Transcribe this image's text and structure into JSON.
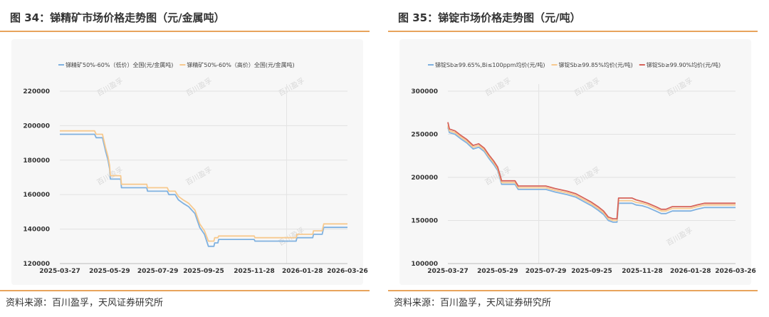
{
  "left": {
    "title": "图 34：锑精矿市场价格走势图（元/金属吨）",
    "source": "资料来源：百川盈孚，天风证券研究所"
  },
  "right": {
    "title": "图 35：锑锭市场价格走势图（元/吨）",
    "source": "资料来源：百川盈孚，天风证券研究所"
  },
  "watermark_text": "百川盈孚",
  "chart_data": [
    {
      "type": "line",
      "title": "",
      "xlabel": "",
      "ylabel": "",
      "x_tick_labels": [
        "2025-03-27",
        "2025-05-29",
        "2025-07-29",
        "2025-09-25",
        "2025-11-28",
        "2026-01-28",
        "2026-03-26"
      ],
      "y_ticks": [
        120000,
        140000,
        160000,
        180000,
        200000,
        220000
      ],
      "ylim": [
        120000,
        220000
      ],
      "legend_position": "top",
      "grid": "horizontal",
      "series": [
        {
          "name": "锑精矿50%-60%（低价）全国(元/金属吨)",
          "color": "#7fb1e0",
          "points": [
            [
              "2025-03-27",
              195000
            ],
            [
              "2025-05-10",
              195000
            ],
            [
              "2025-05-12",
              193000
            ],
            [
              "2025-05-20",
              193000
            ],
            [
              "2025-05-24",
              185000
            ],
            [
              "2025-05-27",
              180000
            ],
            [
              "2025-05-29",
              175000
            ],
            [
              "2025-05-30",
              169000
            ],
            [
              "2025-06-12",
              169000
            ],
            [
              "2025-06-13",
              164000
            ],
            [
              "2025-07-15",
              164000
            ],
            [
              "2025-07-16",
              162000
            ],
            [
              "2025-08-10",
              162000
            ],
            [
              "2025-08-12",
              160000
            ],
            [
              "2025-08-20",
              160000
            ],
            [
              "2025-08-24",
              157000
            ],
            [
              "2025-08-30",
              155000
            ],
            [
              "2025-09-06",
              153000
            ],
            [
              "2025-09-14",
              149000
            ],
            [
              "2025-09-20",
              141000
            ],
            [
              "2025-09-26",
              137000
            ],
            [
              "2025-10-01",
              130000
            ],
            [
              "2025-10-08",
              130000
            ],
            [
              "2025-10-09",
              132000
            ],
            [
              "2025-10-13",
              132000
            ],
            [
              "2025-10-14",
              134000
            ],
            [
              "2025-11-28",
              134000
            ],
            [
              "2025-11-29",
              133000
            ],
            [
              "2026-01-20",
              133000
            ],
            [
              "2026-01-21",
              135000
            ],
            [
              "2026-02-10",
              135000
            ],
            [
              "2026-02-11",
              137000
            ],
            [
              "2026-02-22",
              137000
            ],
            [
              "2026-02-24",
              141000
            ],
            [
              "2026-03-26",
              141000
            ]
          ]
        },
        {
          "name": "锑精矿50%-60%（高价）全国(元/金属吨)",
          "color": "#f7c98e",
          "points": [
            [
              "2025-03-27",
              197000
            ],
            [
              "2025-05-10",
              197000
            ],
            [
              "2025-05-12",
              195000
            ],
            [
              "2025-05-20",
              195000
            ],
            [
              "2025-05-24",
              187000
            ],
            [
              "2025-05-27",
              182000
            ],
            [
              "2025-05-29",
              177000
            ],
            [
              "2025-05-30",
              171000
            ],
            [
              "2025-06-12",
              171000
            ],
            [
              "2025-06-13",
              166000
            ],
            [
              "2025-07-15",
              166000
            ],
            [
              "2025-07-16",
              164000
            ],
            [
              "2025-08-10",
              164000
            ],
            [
              "2025-08-12",
              162000
            ],
            [
              "2025-08-20",
              162000
            ],
            [
              "2025-08-24",
              159000
            ],
            [
              "2025-08-30",
              157000
            ],
            [
              "2025-09-06",
              155000
            ],
            [
              "2025-09-14",
              151000
            ],
            [
              "2025-09-20",
              143000
            ],
            [
              "2025-09-26",
              139000
            ],
            [
              "2025-10-01",
              133000
            ],
            [
              "2025-10-08",
              133000
            ],
            [
              "2025-10-09",
              135000
            ],
            [
              "2025-10-13",
              135000
            ],
            [
              "2025-10-14",
              136000
            ],
            [
              "2025-11-28",
              136000
            ],
            [
              "2025-11-29",
              135000
            ],
            [
              "2026-01-20",
              135000
            ],
            [
              "2026-01-21",
              137000
            ],
            [
              "2026-02-10",
              137000
            ],
            [
              "2026-02-11",
              139000
            ],
            [
              "2026-02-22",
              139000
            ],
            [
              "2026-02-24",
              143000
            ],
            [
              "2026-03-26",
              143000
            ]
          ]
        }
      ]
    },
    {
      "type": "line",
      "title": "",
      "xlabel": "",
      "ylabel": "",
      "x_tick_labels": [
        "2025-03-27",
        "2025-05-29",
        "2025-07-29",
        "2025-09-25",
        "2025-11-28",
        "2026-01-28",
        "2026-03-26"
      ],
      "y_ticks": [
        100000,
        150000,
        200000,
        250000,
        300000
      ],
      "ylim": [
        100000,
        300000
      ],
      "legend_position": "top",
      "grid": "horizontal",
      "series": [
        {
          "name": "锑锭Sb≥99.65%,Bi≤100ppm均价(元/吨)",
          "color": "#7fb1e0",
          "points": [
            [
              "2025-03-27",
              258000
            ],
            [
              "2025-03-29",
              252000
            ],
            [
              "2025-04-05",
              250000
            ],
            [
              "2025-04-12",
              245000
            ],
            [
              "2025-04-20",
              240000
            ],
            [
              "2025-04-28",
              233000
            ],
            [
              "2025-05-05",
              235000
            ],
            [
              "2025-05-12",
              230000
            ],
            [
              "2025-05-18",
              222000
            ],
            [
              "2025-05-24",
              215000
            ],
            [
              "2025-05-29",
              208000
            ],
            [
              "2025-06-03",
              192000
            ],
            [
              "2025-06-20",
              192000
            ],
            [
              "2025-06-24",
              186000
            ],
            [
              "2025-07-29",
              186000
            ],
            [
              "2025-08-10",
              183000
            ],
            [
              "2025-08-25",
              180000
            ],
            [
              "2025-09-05",
              177000
            ],
            [
              "2025-09-15",
              172000
            ],
            [
              "2025-09-25",
              167000
            ],
            [
              "2025-10-03",
              162000
            ],
            [
              "2025-10-10",
              157000
            ],
            [
              "2025-10-16",
              150000
            ],
            [
              "2025-10-22",
              148000
            ],
            [
              "2025-10-27",
              148000
            ],
            [
              "2025-10-29",
              170000
            ],
            [
              "2025-11-15",
              170000
            ],
            [
              "2025-11-20",
              168000
            ],
            [
              "2025-11-28",
              167000
            ],
            [
              "2025-12-05",
              165000
            ],
            [
              "2025-12-15",
              161000
            ],
            [
              "2025-12-22",
              158000
            ],
            [
              "2025-12-28",
              158000
            ],
            [
              "2026-01-05",
              161000
            ],
            [
              "2026-01-28",
              161000
            ],
            [
              "2026-02-05",
              163000
            ],
            [
              "2026-02-15",
              165000
            ],
            [
              "2026-03-26",
              165000
            ]
          ]
        },
        {
          "name": "锑锭Sb≥99.85%均价(元/吨)",
          "color": "#f7c98e",
          "points": [
            [
              "2025-03-27",
              260000
            ],
            [
              "2025-03-29",
              254000
            ],
            [
              "2025-04-05",
              252000
            ],
            [
              "2025-04-12",
              247000
            ],
            [
              "2025-04-20",
              242000
            ],
            [
              "2025-04-28",
              235000
            ],
            [
              "2025-05-05",
              237000
            ],
            [
              "2025-05-12",
              232000
            ],
            [
              "2025-05-18",
              224000
            ],
            [
              "2025-05-24",
              217000
            ],
            [
              "2025-05-29",
              210000
            ],
            [
              "2025-06-03",
              194000
            ],
            [
              "2025-06-20",
              194000
            ],
            [
              "2025-06-24",
              188000
            ],
            [
              "2025-07-29",
              188000
            ],
            [
              "2025-08-10",
              185000
            ],
            [
              "2025-08-25",
              182000
            ],
            [
              "2025-09-05",
              179000
            ],
            [
              "2025-09-15",
              174000
            ],
            [
              "2025-09-25",
              169000
            ],
            [
              "2025-10-03",
              164000
            ],
            [
              "2025-10-10",
              159000
            ],
            [
              "2025-10-16",
              152000
            ],
            [
              "2025-10-22",
              150000
            ],
            [
              "2025-10-27",
              150000
            ],
            [
              "2025-10-29",
              173000
            ],
            [
              "2025-11-15",
              173000
            ],
            [
              "2025-11-20",
              171000
            ],
            [
              "2025-11-28",
              170000
            ],
            [
              "2025-12-05",
              168000
            ],
            [
              "2025-12-15",
              164000
            ],
            [
              "2025-12-22",
              161000
            ],
            [
              "2025-12-28",
              161000
            ],
            [
              "2026-01-05",
              164000
            ],
            [
              "2026-01-28",
              164000
            ],
            [
              "2026-02-05",
              166000
            ],
            [
              "2026-02-15",
              168000
            ],
            [
              "2026-03-26",
              168000
            ]
          ]
        },
        {
          "name": "锑锭Sb≥99.90%均价(元/吨)",
          "color": "#d6635a",
          "points": [
            [
              "2025-03-27",
              264000
            ],
            [
              "2025-03-29",
              256000
            ],
            [
              "2025-04-05",
              254000
            ],
            [
              "2025-04-12",
              249000
            ],
            [
              "2025-04-20",
              244000
            ],
            [
              "2025-04-28",
              237000
            ],
            [
              "2025-05-05",
              239000
            ],
            [
              "2025-05-12",
              234000
            ],
            [
              "2025-05-18",
              226000
            ],
            [
              "2025-05-24",
              219000
            ],
            [
              "2025-05-29",
              212000
            ],
            [
              "2025-06-03",
              196000
            ],
            [
              "2025-06-20",
              196000
            ],
            [
              "2025-06-24",
              190000
            ],
            [
              "2025-07-29",
              190000
            ],
            [
              "2025-08-10",
              187000
            ],
            [
              "2025-08-25",
              184000
            ],
            [
              "2025-09-05",
              181000
            ],
            [
              "2025-09-15",
              176000
            ],
            [
              "2025-09-25",
              171000
            ],
            [
              "2025-10-03",
              166000
            ],
            [
              "2025-10-10",
              161000
            ],
            [
              "2025-10-16",
              154000
            ],
            [
              "2025-10-22",
              152000
            ],
            [
              "2025-10-27",
              152000
            ],
            [
              "2025-10-29",
              176000
            ],
            [
              "2025-11-15",
              176000
            ],
            [
              "2025-11-20",
              174000
            ],
            [
              "2025-11-28",
              172000
            ],
            [
              "2025-12-05",
              170000
            ],
            [
              "2025-12-15",
              166000
            ],
            [
              "2025-12-22",
              163000
            ],
            [
              "2025-12-28",
              163000
            ],
            [
              "2026-01-05",
              166000
            ],
            [
              "2026-01-28",
              166000
            ],
            [
              "2026-02-05",
              168000
            ],
            [
              "2026-02-15",
              170000
            ],
            [
              "2026-03-26",
              170000
            ]
          ]
        }
      ]
    }
  ]
}
